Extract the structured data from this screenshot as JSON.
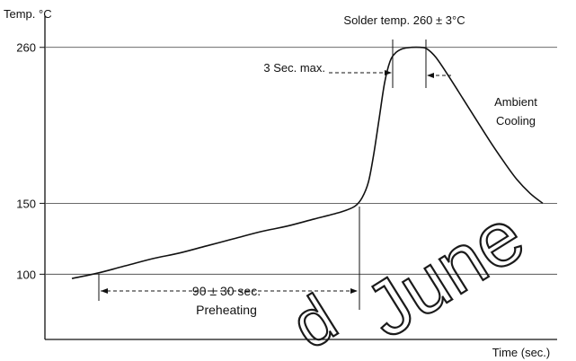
{
  "chart_data": {
    "type": "line",
    "ylabel": "Temp. °C",
    "xlabel": "Time (sec.)",
    "y_ticks": [
      {
        "value": 100,
        "label": "100"
      },
      {
        "value": 150,
        "label": "150"
      },
      {
        "value": 260,
        "label": "260"
      }
    ],
    "ylim": [
      54,
      282
    ],
    "xlim": [
      0,
      620
    ],
    "grid": "horizontal lines at tick values",
    "series": [
      {
        "x": [
          80,
          110,
          140,
          170,
          200,
          230,
          260,
          290,
          320,
          350,
          380,
          395,
          403,
          410,
          416,
          422,
          428,
          434,
          440,
          448,
          458,
          468,
          475,
          485,
          500,
          515,
          530,
          545,
          560,
          575,
          590,
          604
        ],
        "y": [
          97,
          101,
          106,
          111,
          115,
          120,
          125,
          130,
          134,
          139,
          144,
          148,
          154,
          165,
          185,
          210,
          235,
          250,
          256,
          259,
          260,
          260,
          259,
          253,
          239,
          224,
          209,
          194,
          180,
          167,
          157,
          150
        ]
      }
    ],
    "annotations": {
      "solder_temp": "Solder temp. 260 ± 3°C",
      "max_time": "3 Sec. max.",
      "ambient": "Ambient",
      "cooling": "Cooling",
      "preheat_time": "90 ± 30 sec.",
      "preheating": "Preheating"
    }
  },
  "watermark": [
    "d",
    "June"
  ],
  "colors": {
    "line": "#111111",
    "grid": "#555555",
    "background": "#ffffff"
  }
}
